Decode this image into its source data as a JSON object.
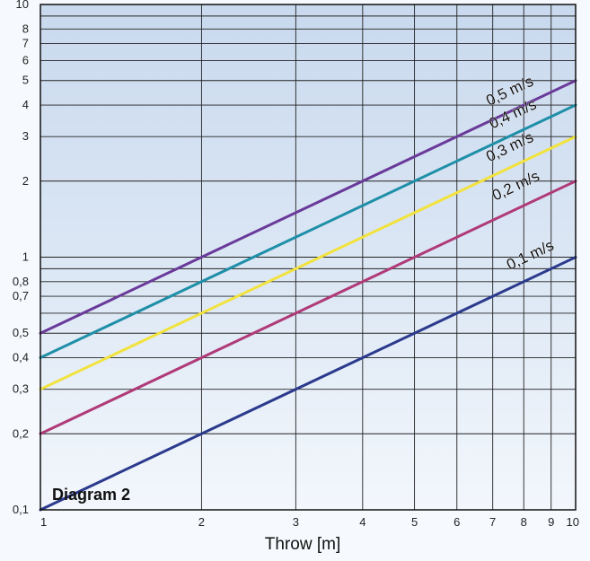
{
  "chart_data": {
    "type": "line",
    "title": "Diagram 2",
    "xlabel": "Throw [m]",
    "ylabel": "",
    "x_scale": "log",
    "y_scale": "log",
    "xlim": [
      1,
      10
    ],
    "ylim": [
      0.1,
      10
    ],
    "grid": true,
    "x_ticks": [
      {
        "v": 1,
        "label": "1"
      },
      {
        "v": 2,
        "label": "2"
      },
      {
        "v": 3,
        "label": "3"
      },
      {
        "v": 4,
        "label": "4"
      },
      {
        "v": 5,
        "label": "5"
      },
      {
        "v": 6,
        "label": "6"
      },
      {
        "v": 7,
        "label": "7"
      },
      {
        "v": 8,
        "label": "8"
      },
      {
        "v": 9,
        "label": "9"
      },
      {
        "v": 10,
        "label": "10"
      }
    ],
    "y_ticks": [
      {
        "v": 0.1,
        "label": "0,1"
      },
      {
        "v": 0.2,
        "label": "0,2"
      },
      {
        "v": 0.3,
        "label": "0,3"
      },
      {
        "v": 0.4,
        "label": "0,4"
      },
      {
        "v": 0.5,
        "label": "0,5"
      },
      {
        "v": 0.7,
        "label": "0,7"
      },
      {
        "v": 0.8,
        "label": "0,8"
      },
      {
        "v": 1,
        "label": "1"
      },
      {
        "v": 2,
        "label": "2"
      },
      {
        "v": 3,
        "label": "3"
      },
      {
        "v": 4,
        "label": "4"
      },
      {
        "v": 5,
        "label": "5"
      },
      {
        "v": 6,
        "label": "6"
      },
      {
        "v": 7,
        "label": "7"
      },
      {
        "v": 8,
        "label": "8"
      },
      {
        "v": 10,
        "label": "10"
      }
    ],
    "series": [
      {
        "name": "0,1 m/s",
        "color": "#2b3a8c",
        "x": [
          1,
          10
        ],
        "y": [
          0.1,
          1
        ]
      },
      {
        "name": "0,2 m/s",
        "color": "#b03a78",
        "x": [
          1,
          10
        ],
        "y": [
          0.2,
          2
        ]
      },
      {
        "name": "0,3 m/s",
        "color": "#f2e23c",
        "x": [
          1,
          10
        ],
        "y": [
          0.3,
          3
        ]
      },
      {
        "name": "0,4 m/s",
        "color": "#1f8fa8",
        "x": [
          1,
          10
        ],
        "y": [
          0.4,
          4
        ]
      },
      {
        "name": "0,5 m/s",
        "color": "#6a3a9a",
        "x": [
          1,
          10
        ],
        "y": [
          0.5,
          5
        ]
      }
    ],
    "colors": {
      "background": "#dde8f5",
      "grid": "#222222"
    }
  }
}
